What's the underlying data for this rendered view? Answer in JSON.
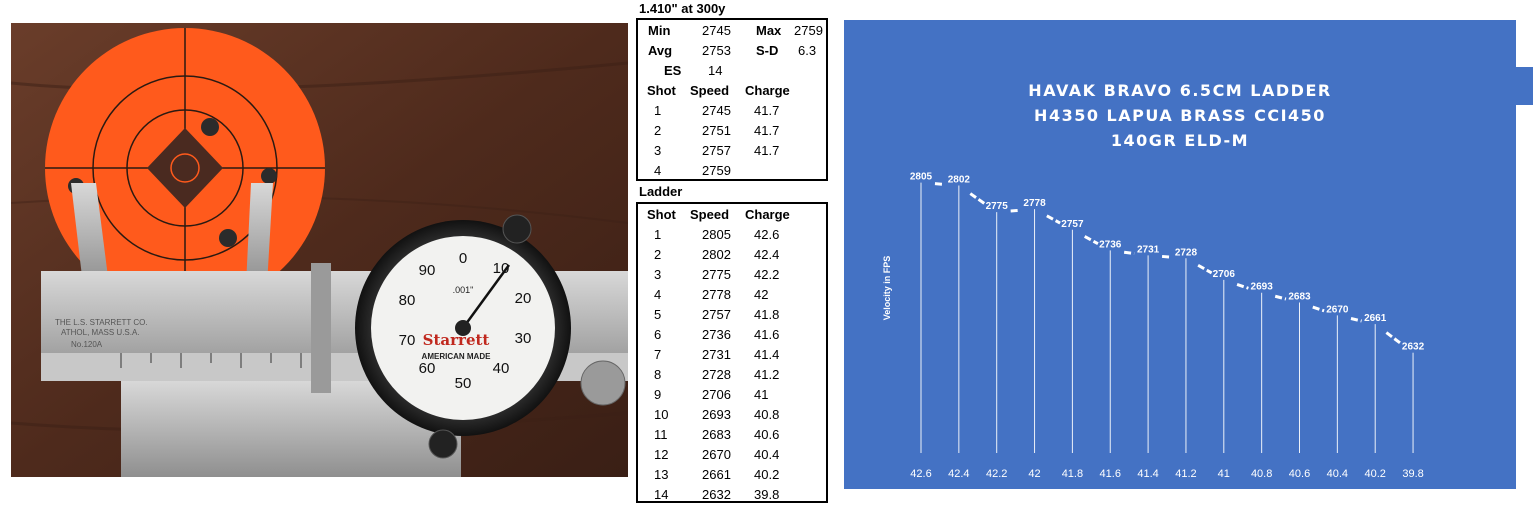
{
  "summary": {
    "caption": "1.410\" at 300y",
    "stats": [
      {
        "label_a": "Min",
        "value_a": "2745",
        "label_b": "Max",
        "value_b": "2759"
      },
      {
        "label_a": "Avg",
        "value_a": "2753",
        "label_b": "S-D",
        "value_b": "6.3"
      },
      {
        "label_a": "ES",
        "value_a": "14",
        "label_b": "",
        "value_b": ""
      }
    ],
    "headers": [
      "Shot",
      "Speed",
      "Charge"
    ],
    "rows": [
      [
        "1",
        "2745",
        "41.7"
      ],
      [
        "2",
        "2751",
        "41.7"
      ],
      [
        "3",
        "2757",
        "41.7"
      ],
      [
        "4",
        "2759",
        ""
      ]
    ]
  },
  "ladder": {
    "caption": "Ladder",
    "headers": [
      "Shot",
      "Speed",
      "Charge"
    ],
    "rows": [
      [
        "1",
        "2805",
        "42.6"
      ],
      [
        "2",
        "2802",
        "42.4"
      ],
      [
        "3",
        "2775",
        "42.2"
      ],
      [
        "4",
        "2778",
        "42"
      ],
      [
        "5",
        "2757",
        "41.8"
      ],
      [
        "6",
        "2736",
        "41.6"
      ],
      [
        "7",
        "2731",
        "41.4"
      ],
      [
        "8",
        "2728",
        "41.2"
      ],
      [
        "9",
        "2706",
        "41"
      ],
      [
        "10",
        "2693",
        "40.8"
      ],
      [
        "11",
        "2683",
        "40.6"
      ],
      [
        "12",
        "2670",
        "40.4"
      ],
      [
        "13",
        "2661",
        "40.2"
      ],
      [
        "14",
        "2632",
        "39.8"
      ]
    ]
  },
  "photo": {
    "caliper_brand": "Starrett",
    "caliper_made": "AMERICAN MADE",
    "dial_unit": ".001\"",
    "dial_numbers": [
      "0",
      "10",
      "20",
      "30",
      "40",
      "50",
      "60",
      "70",
      "80",
      "90"
    ],
    "stamp_lines": [
      "THE L.S. STARRETT CO.",
      "ATHOL, MASS U.S.A.",
      "No.120A"
    ]
  },
  "chart_data": {
    "type": "line",
    "title_lines": [
      "HAVAK BRAVO 6.5CM LADDER",
      "H4350 LAPUA BRASS CCI450",
      "140GR ELD-M"
    ],
    "xlabel": "",
    "ylabel": "Velocity in FPS",
    "categories": [
      "42.6",
      "42.4",
      "42.2",
      "42",
      "41.8",
      "41.6",
      "41.4",
      "41.2",
      "41",
      "40.8",
      "40.6",
      "40.4",
      "40.2",
      "39.8"
    ],
    "series": [
      {
        "values": [
          2805,
          2802,
          2775,
          2778,
          2757,
          2736,
          2731,
          2728,
          2706,
          2693,
          2683,
          2670,
          2661,
          2632
        ]
      }
    ],
    "line_style": "dashed",
    "drop_lines": true,
    "data_labels": true,
    "background_color": "#4472c4",
    "line_color": "#ffffff"
  }
}
